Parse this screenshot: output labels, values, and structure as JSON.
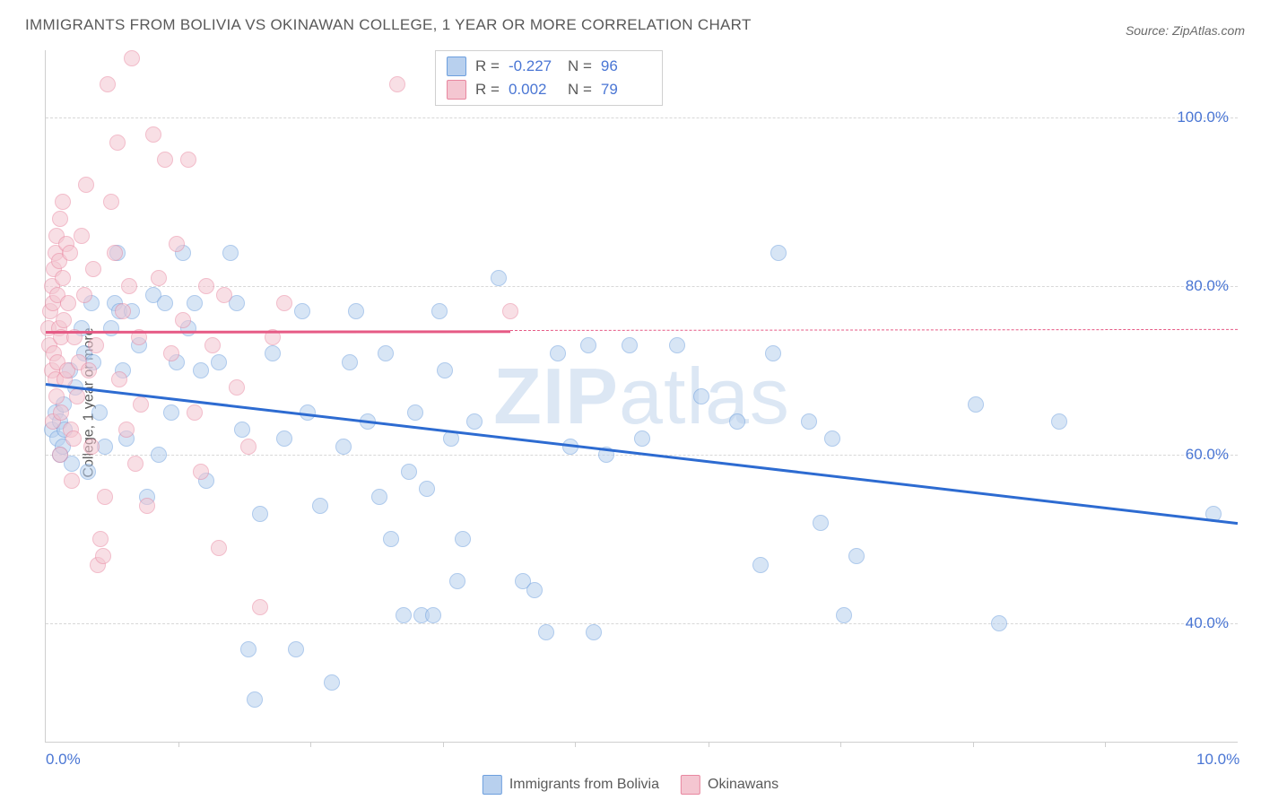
{
  "title": "IMMIGRANTS FROM BOLIVIA VS OKINAWAN COLLEGE, 1 YEAR OR MORE CORRELATION CHART",
  "source": "Source: ZipAtlas.com",
  "watermark_bold": "ZIP",
  "watermark_rest": "atlas",
  "ylabel": "College, 1 year or more",
  "chart": {
    "type": "scatter",
    "background_color": "#ffffff",
    "grid_color": "#d8d8d8",
    "xlim": [
      0,
      10
    ],
    "ylim": [
      26,
      108
    ],
    "yticks": [
      40,
      60,
      80,
      100
    ],
    "ytick_labels": [
      "40.0%",
      "60.0%",
      "80.0%",
      "100.0%"
    ],
    "xticks": [
      0,
      1.11,
      2.22,
      3.33,
      4.44,
      5.56,
      6.67,
      7.78,
      8.89,
      10
    ],
    "x_first_label": "0.0%",
    "x_last_label": "10.0%",
    "marker_radius": 9,
    "regression_line_width": 2.5
  },
  "series": [
    {
      "name": "Immigrants from Bolivia",
      "fill_color": "#b8d0ee",
      "stroke_color": "#6d9fde",
      "line_color": "#2d6bd1",
      "fill_opacity": 0.55,
      "R": "-0.227",
      "N": "96",
      "regression": {
        "x1": 0,
        "y1": 68.5,
        "x2": 10,
        "y2": 52.0,
        "dashed_from_x": null
      },
      "points": [
        [
          0.05,
          63
        ],
        [
          0.08,
          65
        ],
        [
          0.1,
          62
        ],
        [
          0.12,
          60
        ],
        [
          0.12,
          64
        ],
        [
          0.14,
          61
        ],
        [
          0.15,
          66
        ],
        [
          0.16,
          63
        ],
        [
          0.2,
          70
        ],
        [
          0.22,
          59
        ],
        [
          0.25,
          68
        ],
        [
          0.3,
          75
        ],
        [
          0.32,
          72
        ],
        [
          0.35,
          58
        ],
        [
          0.38,
          78
        ],
        [
          0.4,
          71
        ],
        [
          0.45,
          65
        ],
        [
          0.5,
          61
        ],
        [
          0.55,
          75
        ],
        [
          0.58,
          78
        ],
        [
          0.6,
          84
        ],
        [
          0.62,
          77
        ],
        [
          0.65,
          70
        ],
        [
          0.68,
          62
        ],
        [
          0.72,
          77
        ],
        [
          0.78,
          73
        ],
        [
          0.85,
          55
        ],
        [
          0.9,
          79
        ],
        [
          0.95,
          60
        ],
        [
          1.0,
          78
        ],
        [
          1.05,
          65
        ],
        [
          1.1,
          71
        ],
        [
          1.15,
          84
        ],
        [
          1.2,
          75
        ],
        [
          1.25,
          78
        ],
        [
          1.3,
          70
        ],
        [
          1.35,
          57
        ],
        [
          1.45,
          71
        ],
        [
          1.55,
          84
        ],
        [
          1.6,
          78
        ],
        [
          1.65,
          63
        ],
        [
          1.7,
          37
        ],
        [
          1.75,
          31
        ],
        [
          1.8,
          53
        ],
        [
          1.9,
          72
        ],
        [
          2.0,
          62
        ],
        [
          2.1,
          37
        ],
        [
          2.15,
          77
        ],
        [
          2.2,
          65
        ],
        [
          2.3,
          54
        ],
        [
          2.4,
          33
        ],
        [
          2.5,
          61
        ],
        [
          2.55,
          71
        ],
        [
          2.6,
          77
        ],
        [
          2.7,
          64
        ],
        [
          2.8,
          55
        ],
        [
          2.85,
          72
        ],
        [
          2.9,
          50
        ],
        [
          3.0,
          41
        ],
        [
          3.05,
          58
        ],
        [
          3.1,
          65
        ],
        [
          3.15,
          41
        ],
        [
          3.2,
          56
        ],
        [
          3.25,
          41
        ],
        [
          3.3,
          77
        ],
        [
          3.35,
          70
        ],
        [
          3.4,
          62
        ],
        [
          3.45,
          45
        ],
        [
          3.5,
          50
        ],
        [
          3.6,
          64
        ],
        [
          3.8,
          81
        ],
        [
          4.0,
          45
        ],
        [
          4.1,
          44
        ],
        [
          4.2,
          39
        ],
        [
          4.3,
          72
        ],
        [
          4.4,
          61
        ],
        [
          4.55,
          73
        ],
        [
          4.6,
          39
        ],
        [
          4.7,
          60
        ],
        [
          4.9,
          73
        ],
        [
          5.0,
          62
        ],
        [
          5.3,
          73
        ],
        [
          5.5,
          67
        ],
        [
          5.8,
          64
        ],
        [
          6.0,
          47
        ],
        [
          6.1,
          72
        ],
        [
          6.15,
          84
        ],
        [
          6.4,
          64
        ],
        [
          6.5,
          52
        ],
        [
          6.6,
          62
        ],
        [
          6.7,
          41
        ],
        [
          6.8,
          48
        ],
        [
          7.8,
          66
        ],
        [
          8.0,
          40
        ],
        [
          8.5,
          64
        ],
        [
          9.8,
          53
        ]
      ]
    },
    {
      "name": "Okinawans",
      "fill_color": "#f4c6d1",
      "stroke_color": "#e887a0",
      "line_color": "#e65a85",
      "fill_opacity": 0.55,
      "R": "0.002",
      "N": "79",
      "regression": {
        "x1": 0,
        "y1": 74.7,
        "x2": 10,
        "y2": 74.9,
        "dashed_from_x": 3.9
      },
      "points": [
        [
          0.02,
          75
        ],
        [
          0.03,
          73
        ],
        [
          0.04,
          77
        ],
        [
          0.05,
          70
        ],
        [
          0.05,
          80
        ],
        [
          0.06,
          64
        ],
        [
          0.06,
          78
        ],
        [
          0.07,
          72
        ],
        [
          0.07,
          82
        ],
        [
          0.08,
          69
        ],
        [
          0.08,
          84
        ],
        [
          0.09,
          67
        ],
        [
          0.09,
          86
        ],
        [
          0.1,
          71
        ],
        [
          0.1,
          79
        ],
        [
          0.11,
          75
        ],
        [
          0.11,
          83
        ],
        [
          0.12,
          60
        ],
        [
          0.12,
          88
        ],
        [
          0.13,
          74
        ],
        [
          0.13,
          65
        ],
        [
          0.14,
          81
        ],
        [
          0.14,
          90
        ],
        [
          0.15,
          76
        ],
        [
          0.16,
          69
        ],
        [
          0.17,
          85
        ],
        [
          0.18,
          70
        ],
        [
          0.19,
          78
        ],
        [
          0.2,
          84
        ],
        [
          0.21,
          63
        ],
        [
          0.22,
          57
        ],
        [
          0.23,
          62
        ],
        [
          0.24,
          74
        ],
        [
          0.26,
          67
        ],
        [
          0.28,
          71
        ],
        [
          0.3,
          86
        ],
        [
          0.32,
          79
        ],
        [
          0.34,
          92
        ],
        [
          0.36,
          70
        ],
        [
          0.38,
          61
        ],
        [
          0.4,
          82
        ],
        [
          0.42,
          73
        ],
        [
          0.44,
          47
        ],
        [
          0.46,
          50
        ],
        [
          0.48,
          48
        ],
        [
          0.5,
          55
        ],
        [
          0.52,
          104
        ],
        [
          0.55,
          90
        ],
        [
          0.58,
          84
        ],
        [
          0.6,
          97
        ],
        [
          0.62,
          69
        ],
        [
          0.65,
          77
        ],
        [
          0.68,
          63
        ],
        [
          0.7,
          80
        ],
        [
          0.72,
          107
        ],
        [
          0.75,
          59
        ],
        [
          0.78,
          74
        ],
        [
          0.8,
          66
        ],
        [
          0.85,
          54
        ],
        [
          0.9,
          98
        ],
        [
          0.95,
          81
        ],
        [
          1.0,
          95
        ],
        [
          1.05,
          72
        ],
        [
          1.1,
          85
        ],
        [
          1.15,
          76
        ],
        [
          1.2,
          95
        ],
        [
          1.25,
          65
        ],
        [
          1.3,
          58
        ],
        [
          1.35,
          80
        ],
        [
          1.4,
          73
        ],
        [
          1.45,
          49
        ],
        [
          1.5,
          79
        ],
        [
          1.6,
          68
        ],
        [
          1.7,
          61
        ],
        [
          1.8,
          42
        ],
        [
          1.9,
          74
        ],
        [
          2.0,
          78
        ],
        [
          2.95,
          104
        ],
        [
          3.9,
          77
        ]
      ]
    }
  ],
  "legend": {
    "series1_label": "Immigrants from Bolivia",
    "series2_label": "Okinawans"
  }
}
